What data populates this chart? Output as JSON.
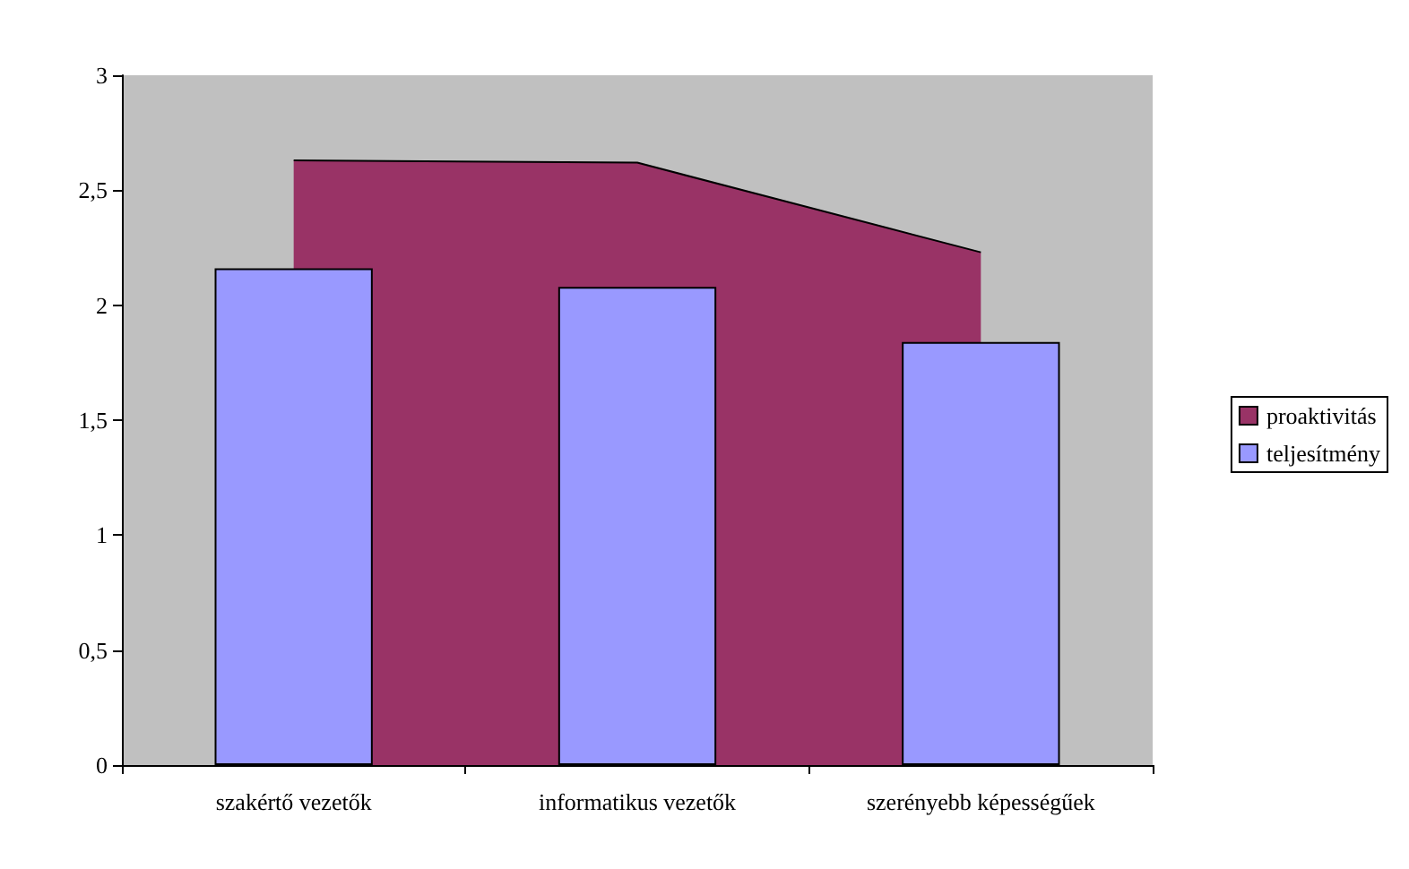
{
  "chart_data": {
    "type": "bar",
    "categories": [
      "szakértő vezetők",
      "informatikus vezetők",
      "szerényebb képességűek"
    ],
    "series": [
      {
        "name": "proaktivitás",
        "type": "area",
        "color": "#993366",
        "values": [
          2.63,
          2.62,
          2.23
        ]
      },
      {
        "name": "teljesítmény",
        "color": "#9999ff",
        "values": [
          2.16,
          2.08,
          1.84
        ]
      }
    ],
    "ylim": [
      0,
      3
    ],
    "yticks": [
      0,
      {
        "value": 0.5,
        "label": "0,5"
      },
      1,
      {
        "value": 1.5,
        "label": "1,5"
      },
      2,
      {
        "value": 2.5,
        "label": "2,5"
      },
      3
    ],
    "grid": false,
    "legend": "right"
  }
}
